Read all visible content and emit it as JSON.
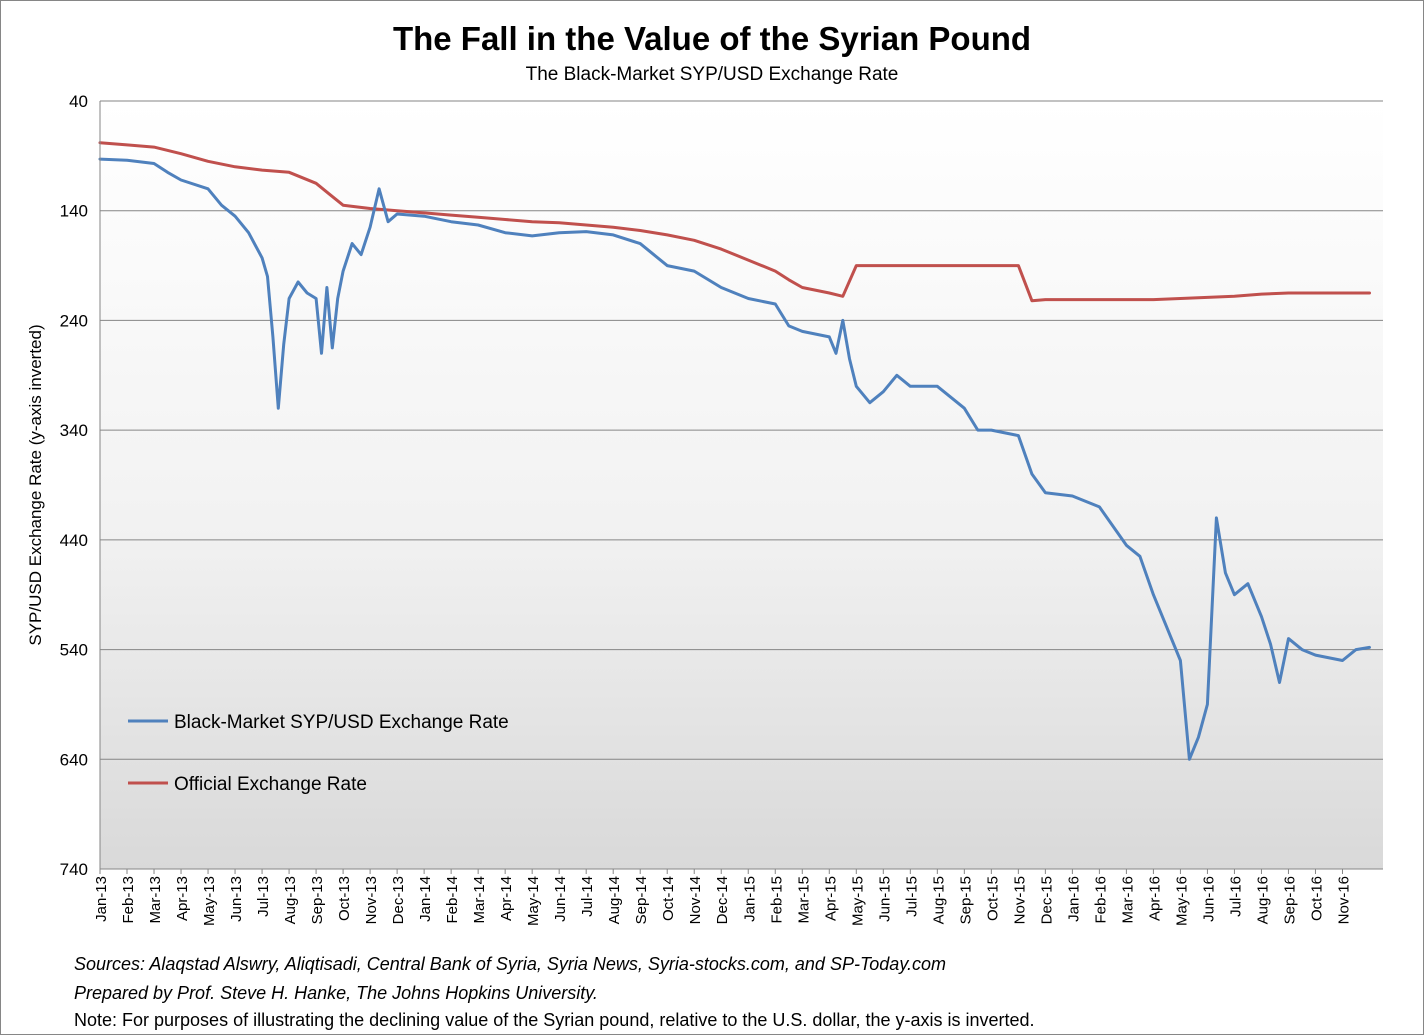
{
  "chart_data": {
    "type": "line",
    "title": "The Fall in the Value of the Syrian Pound",
    "subtitle": "The Black-Market SYP/USD Exchange Rate",
    "ylabel": "SYP/USD Exchange Rate (y-axis inverted)",
    "xlabel": "",
    "y_inverted": true,
    "ylim": [
      40,
      740
    ],
    "yticks": [
      40,
      140,
      240,
      340,
      440,
      540,
      640,
      740
    ],
    "x_range": [
      "2013-01",
      "2016-12"
    ],
    "xticks": [
      "Jan-13",
      "Feb-13",
      "Mar-13",
      "Apr-13",
      "May-13",
      "Jun-13",
      "Jul-13",
      "Aug-13",
      "Sep-13",
      "Oct-13",
      "Nov-13",
      "Dec-13",
      "Jan-14",
      "Feb-14",
      "Mar-14",
      "Apr-14",
      "May-14",
      "Jun-14",
      "Jul-14",
      "Aug-14",
      "Sep-14",
      "Oct-14",
      "Nov-14",
      "Dec-14",
      "Jan-15",
      "Feb-15",
      "Mar-15",
      "Apr-15",
      "May-15",
      "Jun-15",
      "Jul-15",
      "Aug-15",
      "Sep-15",
      "Oct-15",
      "Nov-15",
      "Dec-15",
      "Jan-16",
      "Feb-16",
      "Mar-16",
      "Apr-16",
      "May-16",
      "Jun-16",
      "Jul-16",
      "Aug-16",
      "Sep-16",
      "Oct-16",
      "Nov-16"
    ],
    "grid": true,
    "legend_position": "bottom-left",
    "series": [
      {
        "name": "Black-Market SYP/USD Exchange Rate",
        "color": "#4f81bd",
        "points": [
          [
            "Jan-13",
            93
          ],
          [
            "Feb-13",
            94
          ],
          [
            "Mar-13",
            97
          ],
          [
            "Mar-13",
            105
          ],
          [
            "Apr-13",
            112
          ],
          [
            "May-13",
            120
          ],
          [
            "May-13",
            135
          ],
          [
            "Jun-13",
            145
          ],
          [
            "Jun-13",
            160
          ],
          [
            "Jul-13",
            183
          ],
          [
            "Jul-13",
            200
          ],
          [
            "Jul-13",
            255
          ],
          [
            "Jul-13",
            320
          ],
          [
            "Jul-13",
            262
          ],
          [
            "Aug-13",
            220
          ],
          [
            "Aug-13",
            205
          ],
          [
            "Aug-13",
            215
          ],
          [
            "Sep-13",
            220
          ],
          [
            "Sep-13",
            270
          ],
          [
            "Sep-13",
            210
          ],
          [
            "Sep-13",
            265
          ],
          [
            "Sep-13",
            220
          ],
          [
            "Oct-13",
            195
          ],
          [
            "Oct-13",
            170
          ],
          [
            "Oct-13",
            180
          ],
          [
            "Nov-13",
            155
          ],
          [
            "Nov-13",
            120
          ],
          [
            "Nov-13",
            150
          ],
          [
            "Dec-13",
            143
          ],
          [
            "Jan-14",
            145
          ],
          [
            "Feb-14",
            150
          ],
          [
            "Mar-14",
            153
          ],
          [
            "Apr-14",
            160
          ],
          [
            "May-14",
            163
          ],
          [
            "Jun-14",
            160
          ],
          [
            "Jul-14",
            159
          ],
          [
            "Aug-14",
            162
          ],
          [
            "Sep-14",
            170
          ],
          [
            "Sep-14",
            180
          ],
          [
            "Oct-14",
            190
          ],
          [
            "Nov-14",
            195
          ],
          [
            "Dec-14",
            210
          ],
          [
            "Jan-15",
            220
          ],
          [
            "Feb-15",
            225
          ],
          [
            "Feb-15",
            245
          ],
          [
            "Mar-15",
            250
          ],
          [
            "Apr-15",
            255
          ],
          [
            "Apr-15",
            270
          ],
          [
            "Apr-15",
            240
          ],
          [
            "Apr-15",
            275
          ],
          [
            "May-15",
            300
          ],
          [
            "May-15",
            315
          ],
          [
            "Jun-15",
            305
          ],
          [
            "Jun-15",
            290
          ],
          [
            "Jul-15",
            300
          ],
          [
            "Aug-15",
            300
          ],
          [
            "Sep-15",
            320
          ],
          [
            "Sep-15",
            340
          ],
          [
            "Oct-15",
            340
          ],
          [
            "Nov-15",
            345
          ],
          [
            "Nov-15",
            380
          ],
          [
            "Dec-15",
            397
          ],
          [
            "Jan-16",
            400
          ],
          [
            "Feb-16",
            410
          ],
          [
            "Mar-16",
            445
          ],
          [
            "Mar-16",
            455
          ],
          [
            "Apr-16",
            490
          ],
          [
            "Apr-16",
            520
          ],
          [
            "May-16",
            550
          ],
          [
            "May-16",
            640
          ],
          [
            "May-16",
            620
          ],
          [
            "Jun-16",
            590
          ],
          [
            "Jun-16",
            420
          ],
          [
            "Jun-16",
            470
          ],
          [
            "Jul-16",
            490
          ],
          [
            "Jul-16",
            480
          ],
          [
            "Aug-16",
            510
          ],
          [
            "Aug-16",
            535
          ],
          [
            "Aug-16",
            570
          ],
          [
            "Sep-16",
            530
          ],
          [
            "Sep-16",
            540
          ],
          [
            "Oct-16",
            545
          ],
          [
            "Nov-16",
            550
          ],
          [
            "Nov-16",
            540
          ],
          [
            "Dec-16",
            538
          ]
        ]
      },
      {
        "name": "Official Exchange Rate",
        "color": "#c0504d",
        "points": [
          [
            "Jan-13",
            78
          ],
          [
            "Feb-13",
            80
          ],
          [
            "Mar-13",
            82
          ],
          [
            "Apr-13",
            88
          ],
          [
            "May-13",
            95
          ],
          [
            "Jun-13",
            100
          ],
          [
            "Jul-13",
            103
          ],
          [
            "Aug-13",
            105
          ],
          [
            "Sep-13",
            115
          ],
          [
            "Sep-13",
            125
          ],
          [
            "Oct-13",
            135
          ],
          [
            "Nov-13",
            138
          ],
          [
            "Dec-13",
            140
          ],
          [
            "Jan-14",
            142
          ],
          [
            "Feb-14",
            144
          ],
          [
            "Mar-14",
            146
          ],
          [
            "Apr-14",
            148
          ],
          [
            "May-14",
            150
          ],
          [
            "Jun-14",
            151
          ],
          [
            "Jul-14",
            153
          ],
          [
            "Aug-14",
            155
          ],
          [
            "Sep-14",
            158
          ],
          [
            "Oct-14",
            162
          ],
          [
            "Nov-14",
            167
          ],
          [
            "Dec-14",
            175
          ],
          [
            "Jan-15",
            185
          ],
          [
            "Feb-15",
            195
          ],
          [
            "Feb-15",
            203
          ],
          [
            "Mar-15",
            210
          ],
          [
            "Apr-15",
            215
          ],
          [
            "Apr-15",
            218
          ],
          [
            "May-15",
            190
          ],
          [
            "Jun-15",
            190
          ],
          [
            "Jul-15",
            190
          ],
          [
            "Aug-15",
            190
          ],
          [
            "Sep-15",
            190
          ],
          [
            "Oct-15",
            190
          ],
          [
            "Nov-15",
            190
          ],
          [
            "Nov-15",
            222
          ],
          [
            "Dec-15",
            221
          ],
          [
            "Jan-16",
            221
          ],
          [
            "Feb-16",
            221
          ],
          [
            "Mar-16",
            221
          ],
          [
            "Apr-16",
            221
          ],
          [
            "May-16",
            220
          ],
          [
            "Jun-16",
            219
          ],
          [
            "Jul-16",
            218
          ],
          [
            "Aug-16",
            216
          ],
          [
            "Sep-16",
            215
          ],
          [
            "Oct-16",
            215
          ],
          [
            "Nov-16",
            215
          ],
          [
            "Dec-16",
            215
          ]
        ]
      }
    ]
  },
  "notes": {
    "sources": "Sources: Alaqstad Alswry, Aliqtisadi, Central Bank of Syria, Syria News, Syria-stocks.com, and SP-Today.com",
    "prepared": "Prepared by Prof. Steve H. Hanke, The Johns Hopkins University.",
    "note": "Note: For purposes of illustrating the declining value of the  Syrian pound, relative to the U.S. dollar, the y-axis is inverted."
  }
}
